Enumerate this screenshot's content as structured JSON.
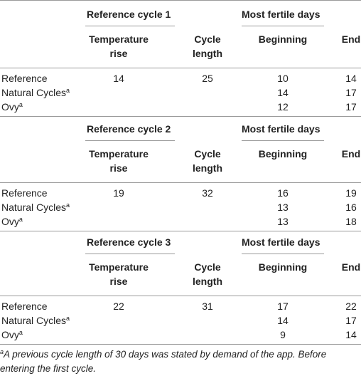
{
  "table": {
    "blocks": [
      {
        "group_headers": [
          "Reference cycle 1",
          "Most fertile days"
        ],
        "subheaders": [
          "Temperature rise",
          "Cycle length",
          "Beginning",
          "End"
        ],
        "rows": [
          {
            "label": "Reference",
            "cells": [
              14,
              25,
              10,
              14
            ]
          },
          {
            "label": "Natural Cycles",
            "sup": "a",
            "cells": [
              null,
              null,
              14,
              17
            ]
          },
          {
            "label": "Ovy",
            "sup": "a",
            "cells": [
              null,
              null,
              12,
              17
            ]
          }
        ]
      },
      {
        "group_headers": [
          "Reference cycle 2",
          "Most fertile days"
        ],
        "subheaders": [
          "Temperature rise",
          "Cycle length",
          "Beginning",
          "End"
        ],
        "rows": [
          {
            "label": "Reference",
            "cells": [
              19,
              32,
              16,
              19
            ]
          },
          {
            "label": "Natural Cycles",
            "sup": "a",
            "cells": [
              null,
              null,
              13,
              16
            ]
          },
          {
            "label": "Ovy",
            "sup": "a",
            "cells": [
              null,
              null,
              13,
              18
            ]
          }
        ]
      },
      {
        "group_headers": [
          "Reference cycle 3",
          "Most fertile days"
        ],
        "subheaders": [
          "Temperature rise",
          "Cycle length",
          "Beginning",
          "End"
        ],
        "rows": [
          {
            "label": "Reference",
            "cells": [
              22,
              31,
              17,
              22
            ]
          },
          {
            "label": "Natural Cycles",
            "sup": "a",
            "cells": [
              null,
              null,
              14,
              17
            ]
          },
          {
            "label": "Ovy",
            "sup": "a",
            "cells": [
              null,
              null,
              9,
              14
            ]
          }
        ]
      }
    ],
    "footnote": {
      "sup": "a",
      "text": "A previous cycle length of 30 days was stated by demand of the app. Before entering the first cycle."
    }
  }
}
